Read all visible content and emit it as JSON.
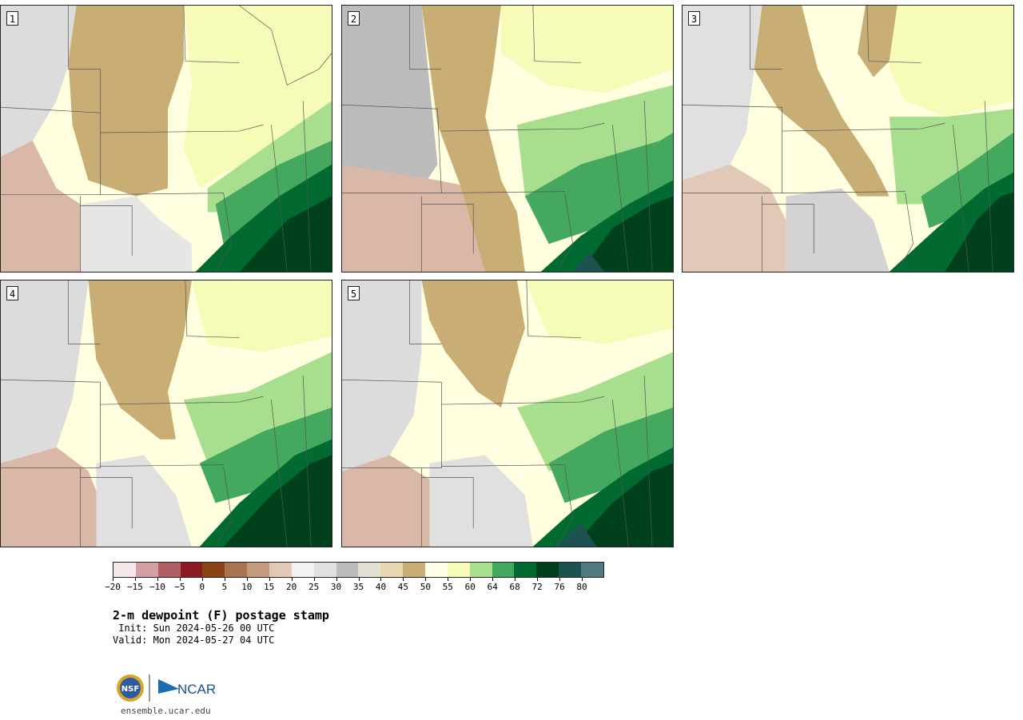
{
  "panels": [
    {
      "label": "1"
    },
    {
      "label": "2"
    },
    {
      "label": "3"
    },
    {
      "label": "4"
    },
    {
      "label": "5"
    }
  ],
  "colorbar": {
    "colors": [
      "#f4e8e8",
      "#d4a0a6",
      "#b25e66",
      "#8b1a24",
      "#8a4415",
      "#a87450",
      "#c59b80",
      "#e2c8b6",
      "#f2f2f2",
      "#e0e0e0",
      "#bbbbbb",
      "#e2e0d3",
      "#e6d7b1",
      "#c8ad74",
      "#ffffe8",
      "#f7fbb8",
      "#a8df8e",
      "#45a85f",
      "#006a30",
      "#00401c",
      "#1e5250",
      "#527b80"
    ],
    "tick_labels": [
      "-20",
      "-15",
      "-10",
      "-5",
      "0",
      "5",
      "10",
      "15",
      "20",
      "25",
      "30",
      "35",
      "40",
      "45",
      "50",
      "55",
      "60",
      "64",
      "68",
      "72",
      "76",
      "80"
    ]
  },
  "title": "2-m dewpoint (F) postage stamp",
  "init": " Init: Sun 2024-05-26 00 UTC",
  "valid": "Valid: Mon 2024-05-27 04 UTC",
  "logo_left": "NSF",
  "logo_right": "NCAR",
  "site": "ensemble.ucar.edu"
}
